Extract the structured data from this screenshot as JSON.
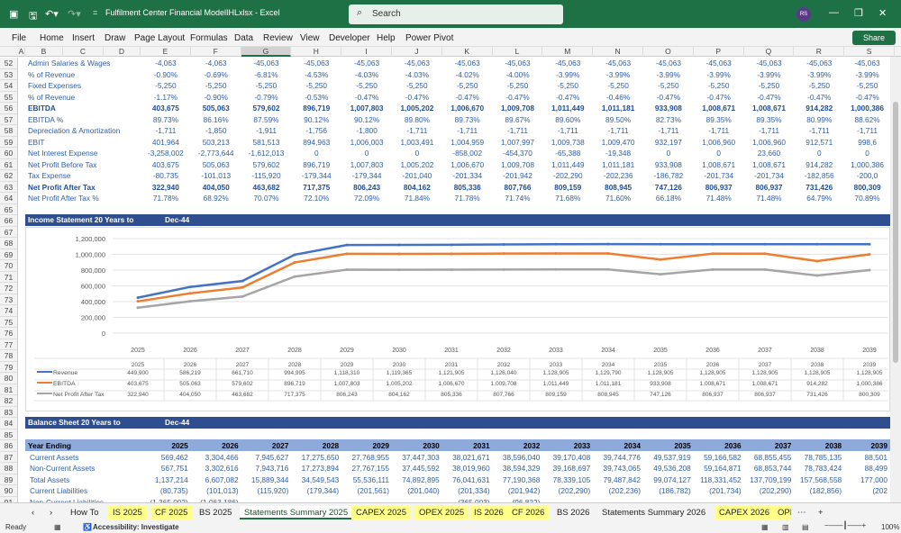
{
  "app": {
    "title": "Fulfilment Center Financial ModelIHLxlsx  -  Excel",
    "search_placeholder": "Search",
    "user_initials": "RS",
    "share": "Share"
  },
  "menu": [
    "File",
    "Home",
    "Insert",
    "Draw",
    "Page Layout",
    "Formulas",
    "Data",
    "Review",
    "View",
    "Developer",
    "Help",
    "Power Pivot"
  ],
  "columns": [
    "A",
    "B",
    "C",
    "D",
    "E",
    "F",
    "G",
    "H",
    "I",
    "J",
    "K",
    "L",
    "M",
    "N",
    "O",
    "P",
    "Q",
    "R",
    "S"
  ],
  "selected_column": "G",
  "income_rows": [
    {
      "row": 52,
      "label": "Admin Salaries & Wages",
      "bold": false,
      "values": [
        "-4,063",
        "-4,063",
        "-45,063",
        "-45,063",
        "-45,063",
        "-45,063",
        "-45,063",
        "-45,063",
        "-45,063",
        "-45,063",
        "-45,063",
        "-45,063",
        "-45,063",
        "-45,063",
        "-45,063"
      ]
    },
    {
      "row": 53,
      "label": "% of Revenue",
      "bold": false,
      "values": [
        "-0.90%",
        "-0.69%",
        "-6.81%",
        "-4.53%",
        "-4.03%",
        "-4.03%",
        "-4.02%",
        "-4.00%",
        "-3.99%",
        "-3.99%",
        "-3.99%",
        "-3.99%",
        "-3.99%",
        "-3.99%",
        "-3.99%"
      ]
    },
    {
      "row": 54,
      "label": "Fixed Expenses",
      "bold": false,
      "values": [
        "-5,250",
        "-5,250",
        "-5,250",
        "-5,250",
        "-5,250",
        "-5,250",
        "-5,250",
        "-5,250",
        "-5,250",
        "-5,250",
        "-5,250",
        "-5,250",
        "-5,250",
        "-5,250",
        "-5,250"
      ]
    },
    {
      "row": 55,
      "label": "% of Revenue",
      "bold": false,
      "values": [
        "-1.17%",
        "-0.90%",
        "-0.79%",
        "-0.53%",
        "-0.47%",
        "-0.47%",
        "-0.47%",
        "-0.47%",
        "-0.47%",
        "-0.46%",
        "-0.47%",
        "-0.47%",
        "-0.47%",
        "-0.47%",
        "-0.47%"
      ]
    },
    {
      "row": 56,
      "label": "EBITDA",
      "bold": true,
      "values": [
        "403,675",
        "505,063",
        "579,602",
        "896,719",
        "1,007,803",
        "1,005,202",
        "1,006,670",
        "1,009,708",
        "1,011,449",
        "1,011,181",
        "933,908",
        "1,008,671",
        "1,008,671",
        "914,282",
        "1,000,386"
      ]
    },
    {
      "row": 57,
      "label": "EBITDA %",
      "bold": false,
      "values": [
        "89.73%",
        "86.16%",
        "87.59%",
        "90.12%",
        "90.12%",
        "89.80%",
        "89.73%",
        "89.67%",
        "89.60%",
        "89.50%",
        "82.73%",
        "89.35%",
        "89.35%",
        "80.99%",
        "88.62%"
      ]
    },
    {
      "row": 58,
      "label": "Depreciation & Amortization",
      "bold": false,
      "values": [
        "-1,711",
        "-1,850",
        "-1,911",
        "-1,756",
        "-1,800",
        "-1,711",
        "-1,711",
        "-1,711",
        "-1,711",
        "-1,711",
        "-1,711",
        "-1,711",
        "-1,711",
        "-1,711",
        "-1,711"
      ]
    },
    {
      "row": 59,
      "label": "EBIT",
      "bold": false,
      "values": [
        "401,964",
        "503,213",
        "581,513",
        "894,963",
        "1,006,003",
        "1,003,491",
        "1,004,959",
        "1,007,997",
        "1,009,738",
        "1,009,470",
        "932,197",
        "1,006,960",
        "1,006,960",
        "912,571",
        "998,6"
      ]
    },
    {
      "row": 60,
      "label": "Net Interest Expense",
      "bold": false,
      "values": [
        "-3,258,002",
        "-2,773,644",
        "-1,612,013",
        "0",
        "0",
        "0",
        "-858,002",
        "-454,370",
        "-65,388",
        "-19,348",
        "0",
        "0",
        "23,660",
        "0",
        "0"
      ]
    },
    {
      "row": 61,
      "label": "Net Profit Before Tax",
      "bold": false,
      "values": [
        "403,675",
        "505,063",
        "579,602",
        "896,719",
        "1,007,803",
        "1,005,202",
        "1,006,670",
        "1,009,708",
        "1,011,449",
        "1,011,181",
        "933,908",
        "1,008,671",
        "1,008,671",
        "914,282",
        "1,000,386"
      ]
    },
    {
      "row": 62,
      "label": "Tax Expense",
      "bold": false,
      "values": [
        "-80,735",
        "-101,013",
        "-115,920",
        "-179,344",
        "-179,344",
        "-201,040",
        "-201,334",
        "-201,942",
        "-202,290",
        "-202,236",
        "-186,782",
        "-201,734",
        "-201,734",
        "-182,856",
        "-200,0"
      ]
    },
    {
      "row": 63,
      "label": "Net Profit After Tax",
      "bold": true,
      "values": [
        "322,940",
        "404,050",
        "463,682",
        "717,375",
        "806,243",
        "804,162",
        "805,336",
        "807,766",
        "809,159",
        "808,945",
        "747,126",
        "806,937",
        "806,937",
        "731,426",
        "800,309"
      ]
    },
    {
      "row": 64,
      "label": "Net Profit After Tax %",
      "bold": false,
      "values": [
        "71.78%",
        "68.92%",
        "70.07%",
        "72.10%",
        "72.09%",
        "71.84%",
        "71.78%",
        "71.74%",
        "71.68%",
        "71.60%",
        "66.18%",
        "71.48%",
        "71.48%",
        "64.79%",
        "70.89%"
      ]
    }
  ],
  "income_section": {
    "title": "Income Statement 20 Years to",
    "date": "Dec-44"
  },
  "chart_data": {
    "type": "line",
    "title": "",
    "categories": [
      "2025",
      "2026",
      "2027",
      "2028",
      "2029",
      "2030",
      "2031",
      "2032",
      "2033",
      "2034",
      "2035",
      "2036",
      "2037",
      "2038",
      "2039"
    ],
    "ylim": [
      0,
      1200000
    ],
    "yticks": [
      "0",
      "200,000",
      "400,000",
      "600,000",
      "800,000",
      "1,000,000",
      "1,200,000"
    ],
    "grid": true,
    "legend": "data-table-left",
    "series": [
      {
        "name": "Revenue",
        "color": "#4472c4",
        "values": [
          449900,
          586219,
          661710,
          994995,
          1118310,
          1119365,
          1121905,
          1126040,
          1128905,
          1129790,
          1128905,
          1128905,
          1128905,
          1128905,
          1128905
        ],
        "labels": [
          "449,900",
          "586,219",
          "661,710",
          "994,995",
          "1,118,310",
          "1,119,365",
          "1,121,905",
          "1,126,040",
          "1,128,905",
          "1,129,790",
          "1,128,905",
          "1,128,905",
          "1,128,905",
          "1,128,905",
          "1,128,905"
        ]
      },
      {
        "name": "EBITDA",
        "color": "#ed7d31",
        "values": [
          403675,
          505063,
          579602,
          896719,
          1007803,
          1005202,
          1006670,
          1009708,
          1011449,
          1011181,
          933908,
          1008671,
          1008671,
          914282,
          1000386
        ],
        "labels": [
          "403,675",
          "505,063",
          "579,602",
          "896,719",
          "1,007,803",
          "1,005,202",
          "1,006,670",
          "1,009,708",
          "1,011,449",
          "1,011,181",
          "933,908",
          "1,008,671",
          "1,008,671",
          "914,282",
          "1,000,386"
        ]
      },
      {
        "name": "Net Profit After Tax",
        "color": "#a5a5a5",
        "values": [
          322940,
          404050,
          463682,
          717375,
          806243,
          804162,
          805336,
          807766,
          809159,
          808945,
          747126,
          806937,
          806937,
          731426,
          800309
        ],
        "labels": [
          "322,940",
          "404,050",
          "463,682",
          "717,375",
          "806,243",
          "804,162",
          "805,336",
          "807,766",
          "809,159",
          "808,945",
          "747,126",
          "806,937",
          "806,937",
          "731,426",
          "800,309"
        ]
      }
    ]
  },
  "balance_section": {
    "title": "Balance Sheet 20 Years to",
    "date": "Dec-44"
  },
  "balance_header": {
    "label": "Year Ending",
    "years": [
      "2025",
      "2026",
      "2027",
      "2028",
      "2029",
      "2030",
      "2031",
      "2032",
      "2033",
      "2034",
      "2035",
      "2036",
      "2037",
      "2038",
      "2039"
    ]
  },
  "balance_rows": [
    {
      "row": 87,
      "label": "Current Assets",
      "values": [
        "569,462",
        "3,304,466",
        "7,945,627",
        "17,275,650",
        "27,768,955",
        "37,447,303",
        "38,021,671",
        "38,596,040",
        "39,170,408",
        "39,744,776",
        "49,537,919",
        "59,166,582",
        "68,855,455",
        "78,785,135",
        "88,501"
      ]
    },
    {
      "row": 88,
      "label": "Non-Current Assets",
      "values": [
        "567,751",
        "3,302,616",
        "7,943,716",
        "17,273,894",
        "27,767,155",
        "37,445,592",
        "38,019,960",
        "38,594,329",
        "39,168,697",
        "39,743,065",
        "49,536,208",
        "59,164,871",
        "68,853,744",
        "78,783,424",
        "88,499"
      ]
    },
    {
      "row": 89,
      "label": "Total Assets",
      "values": [
        "1,137,214",
        "6,607,082",
        "15,889,344",
        "34,549,543",
        "55,536,111",
        "74,892,895",
        "76,041,631",
        "77,190,368",
        "78,339,105",
        "79,487,842",
        "99,074,127",
        "118,331,452",
        "137,709,199",
        "157,568,558",
        "177,000"
      ]
    },
    {
      "row": 90,
      "label": "Current Liabilities",
      "values": [
        "(80,735)",
        "(101,013)",
        "(115,920)",
        "(179,344)",
        "(201,561)",
        "(201,040)",
        "(201,334)",
        "(201,942)",
        "(202,290)",
        "(202,236)",
        "(186,782)",
        "(201,734)",
        "(202,290)",
        "(182,856)",
        "(202"
      ]
    },
    {
      "row": 91,
      "label": "Non-Current Liabilities",
      "values": [
        "(1,365,002)",
        "(1,063,186)",
        "",
        "",
        "",
        "",
        "(365,003)",
        "(96,822)",
        "",
        "",
        "",
        "",
        "",
        "",
        ""
      ]
    }
  ],
  "tabs": [
    {
      "label": "How To",
      "style": "plain"
    },
    {
      "label": "IS 2025",
      "style": "yellow"
    },
    {
      "label": "CF 2025",
      "style": "yellow"
    },
    {
      "label": "BS 2025",
      "style": "plain"
    },
    {
      "label": "Statements Summary 2025",
      "style": "active"
    },
    {
      "label": "CAPEX 2025",
      "style": "yellow"
    },
    {
      "label": "OPEX 2025",
      "style": "yellow"
    },
    {
      "label": "IS 2026",
      "style": "yellow"
    },
    {
      "label": "CF 2026",
      "style": "yellow"
    },
    {
      "label": "BS 2026",
      "style": "plain"
    },
    {
      "label": "Statements Summary 2026",
      "style": "plain"
    },
    {
      "label": "CAPEX 2026",
      "style": "yellow"
    },
    {
      "label": "OPE",
      "style": "yellow"
    }
  ],
  "status": {
    "ready": "Ready",
    "accessibility": "Accessibility: Investigate",
    "zoom": "100%"
  }
}
